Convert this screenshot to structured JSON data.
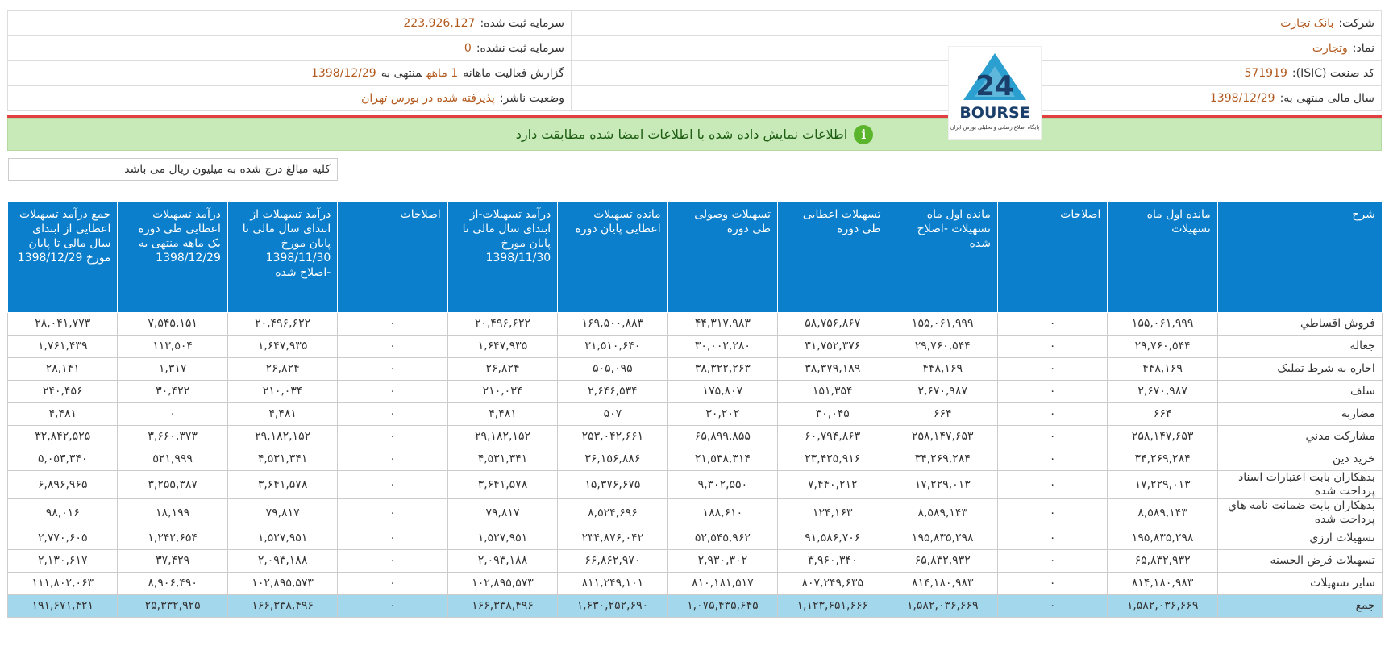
{
  "company": [
    {
      "label": "شرکت:",
      "value": "بانک تجارت"
    },
    {
      "label": "نماد:",
      "value": "وتجارت"
    },
    {
      "label": "کد صنعت (ISIC):",
      "value": "571919"
    },
    {
      "label": "سال مالی منتهی به:",
      "value": "1398/12/29"
    }
  ],
  "capital": [
    {
      "label": "سرمایه ثبت شده:",
      "value": "223,926,127"
    },
    {
      "label": "سرمایه ثبت نشده:",
      "value": "0"
    }
  ],
  "report": {
    "label": "گزارش فعالیت ماهانه",
    "period": "1 ماهه",
    "ending": "منتهی به",
    "date": "1398/12/29"
  },
  "status": {
    "label": "وضعیت ناشر:",
    "value": "پذیرفته شده در بورس تهران"
  },
  "logo": {
    "number": "24",
    "text": "BOURSE",
    "caption": "پایگاه اطلاع رسانی و تحلیلی بورس ایران"
  },
  "banner": "اطلاعات نمایش داده شده با اطلاعات امضا شده مطابقت دارد",
  "note": "کلیه مبالغ درج شده به میلیون ریال می باشد",
  "table": {
    "columns": [
      "شرح",
      "مانده اول ماه تسهیلات",
      "اصلاحات",
      "مانده اول ماه تسهیلات -اصلاح شده",
      "تسهیلات اعطایی طی دوره",
      "تسهیلات وصولی طی دوره",
      "مانده تسهیلات اعطایی پایان دوره",
      "درآمد تسهیلات-از ابتدای سال مالی تا پایان مورخ 1398/11/30",
      "اصلاحات",
      "درآمد تسهیلات از ابتدای سال مالی تا پایان مورخ 1398/11/30 -اصلاح شده",
      "درآمد تسهیلات اعطایی طی دوره یک ماهه منتهی به 1398/12/29",
      "جمع درآمد تسهیلات اعطایی از ابتدای سال مالی تا پایان مورخ 1398/12/29"
    ],
    "rows": [
      {
        "label": "فروش اقساطي",
        "values": [
          "۱۵۵,۰۶۱,۹۹۹",
          "۰",
          "۱۵۵,۰۶۱,۹۹۹",
          "۵۸,۷۵۶,۸۶۷",
          "۴۴,۳۱۷,۹۸۳",
          "۱۶۹,۵۰۰,۸۸۳",
          "۲۰,۴۹۶,۶۲۲",
          "۰",
          "۲۰,۴۹۶,۶۲۲",
          "۷,۵۴۵,۱۵۱",
          "۲۸,۰۴۱,۷۷۳"
        ]
      },
      {
        "label": "جعاله",
        "values": [
          "۲۹,۷۶۰,۵۴۴",
          "۰",
          "۲۹,۷۶۰,۵۴۴",
          "۳۱,۷۵۲,۳۷۶",
          "۳۰,۰۰۲,۲۸۰",
          "۳۱,۵۱۰,۶۴۰",
          "۱,۶۴۷,۹۳۵",
          "۰",
          "۱,۶۴۷,۹۳۵",
          "۱۱۳,۵۰۴",
          "۱,۷۶۱,۴۳۹"
        ]
      },
      {
        "label": "اجاره به شرط تمليک",
        "values": [
          "۴۴۸,۱۶۹",
          "۰",
          "۴۴۸,۱۶۹",
          "۳۸,۳۷۹,۱۸۹",
          "۳۸,۳۲۲,۲۶۳",
          "۵۰۵,۰۹۵",
          "۲۶,۸۲۴",
          "۰",
          "۲۶,۸۲۴",
          "۱,۳۱۷",
          "۲۸,۱۴۱"
        ]
      },
      {
        "label": "سلف",
        "values": [
          "۲,۶۷۰,۹۸۷",
          "۰",
          "۲,۶۷۰,۹۸۷",
          "۱۵۱,۳۵۴",
          "۱۷۵,۸۰۷",
          "۲,۶۴۶,۵۳۴",
          "۲۱۰,۰۳۴",
          "۰",
          "۲۱۰,۰۳۴",
          "۳۰,۴۲۲",
          "۲۴۰,۴۵۶"
        ]
      },
      {
        "label": "مضاربه",
        "values": [
          "۶۶۴",
          "۰",
          "۶۶۴",
          "۳۰,۰۴۵",
          "۳۰,۲۰۲",
          "۵۰۷",
          "۴,۴۸۱",
          "۰",
          "۴,۴۸۱",
          "۰",
          "۴,۴۸۱"
        ]
      },
      {
        "label": "مشارکت مدني",
        "values": [
          "۲۵۸,۱۴۷,۶۵۳",
          "۰",
          "۲۵۸,۱۴۷,۶۵۳",
          "۶۰,۷۹۴,۸۶۳",
          "۶۵,۸۹۹,۸۵۵",
          "۲۵۳,۰۴۲,۶۶۱",
          "۲۹,۱۸۲,۱۵۲",
          "۰",
          "۲۹,۱۸۲,۱۵۲",
          "۳,۶۶۰,۳۷۳",
          "۳۲,۸۴۲,۵۲۵"
        ]
      },
      {
        "label": "خريد دين",
        "values": [
          "۳۴,۲۶۹,۲۸۴",
          "۰",
          "۳۴,۲۶۹,۲۸۴",
          "۲۳,۴۲۵,۹۱۶",
          "۲۱,۵۳۸,۳۱۴",
          "۳۶,۱۵۶,۸۸۶",
          "۴,۵۳۱,۳۴۱",
          "۰",
          "۴,۵۳۱,۳۴۱",
          "۵۲۱,۹۹۹",
          "۵,۰۵۳,۳۴۰"
        ]
      },
      {
        "label": "بدهکاران بابت اعتبارات اسناد پرداخت شده",
        "values": [
          "۱۷,۲۲۹,۰۱۳",
          "۰",
          "۱۷,۲۲۹,۰۱۳",
          "۷,۴۴۰,۲۱۲",
          "۹,۳۰۲,۵۵۰",
          "۱۵,۳۷۶,۶۷۵",
          "۳,۶۴۱,۵۷۸",
          "۰",
          "۳,۶۴۱,۵۷۸",
          "۳,۲۵۵,۳۸۷",
          "۶,۸۹۶,۹۶۵"
        ]
      },
      {
        "label": "بدهکاران بابت ضمانت نامه هاي پرداخت شده",
        "values": [
          "۸,۵۸۹,۱۴۳",
          "۰",
          "۸,۵۸۹,۱۴۳",
          "۱۲۴,۱۶۳",
          "۱۸۸,۶۱۰",
          "۸,۵۲۴,۶۹۶",
          "۷۹,۸۱۷",
          "۰",
          "۷۹,۸۱۷",
          "۱۸,۱۹۹",
          "۹۸,۰۱۶"
        ]
      },
      {
        "label": "تسهيلات ارزي",
        "values": [
          "۱۹۵,۸۳۵,۲۹۸",
          "۰",
          "۱۹۵,۸۳۵,۲۹۸",
          "۹۱,۵۸۶,۷۰۶",
          "۵۲,۵۴۵,۹۶۲",
          "۲۳۴,۸۷۶,۰۴۲",
          "۱,۵۲۷,۹۵۱",
          "۰",
          "۱,۵۲۷,۹۵۱",
          "۱,۲۴۲,۶۵۴",
          "۲,۷۷۰,۶۰۵"
        ]
      },
      {
        "label": "تسهيلات قرض الحسنه",
        "values": [
          "۶۵,۸۳۲,۹۳۲",
          "۰",
          "۶۵,۸۳۲,۹۳۲",
          "۳,۹۶۰,۳۴۰",
          "۲,۹۳۰,۳۰۲",
          "۶۶,۸۶۲,۹۷۰",
          "۲,۰۹۳,۱۸۸",
          "۰",
          "۲,۰۹۳,۱۸۸",
          "۳۷,۴۲۹",
          "۲,۱۳۰,۶۱۷"
        ]
      },
      {
        "label": "ساير تسهيلات",
        "values": [
          "۸۱۴,۱۸۰,۹۸۳",
          "۰",
          "۸۱۴,۱۸۰,۹۸۳",
          "۸۰۷,۲۴۹,۶۳۵",
          "۸۱۰,۱۸۱,۵۱۷",
          "۸۱۱,۲۴۹,۱۰۱",
          "۱۰۲,۸۹۵,۵۷۳",
          "۰",
          "۱۰۲,۸۹۵,۵۷۳",
          "۸,۹۰۶,۴۹۰",
          "۱۱۱,۸۰۲,۰۶۳"
        ]
      }
    ],
    "total": {
      "label": "جمع",
      "values": [
        "۱,۵۸۲,۰۳۶,۶۶۹",
        "۰",
        "۱,۵۸۲,۰۳۶,۶۶۹",
        "۱,۱۲۳,۶۵۱,۶۶۶",
        "۱,۰۷۵,۴۳۵,۶۴۵",
        "۱,۶۳۰,۲۵۲,۶۹۰",
        "۱۶۶,۳۳۸,۴۹۶",
        "۰",
        "۱۶۶,۳۳۸,۴۹۶",
        "۲۵,۳۳۲,۹۲۵",
        "۱۹۱,۶۷۱,۴۲۱"
      ]
    }
  }
}
